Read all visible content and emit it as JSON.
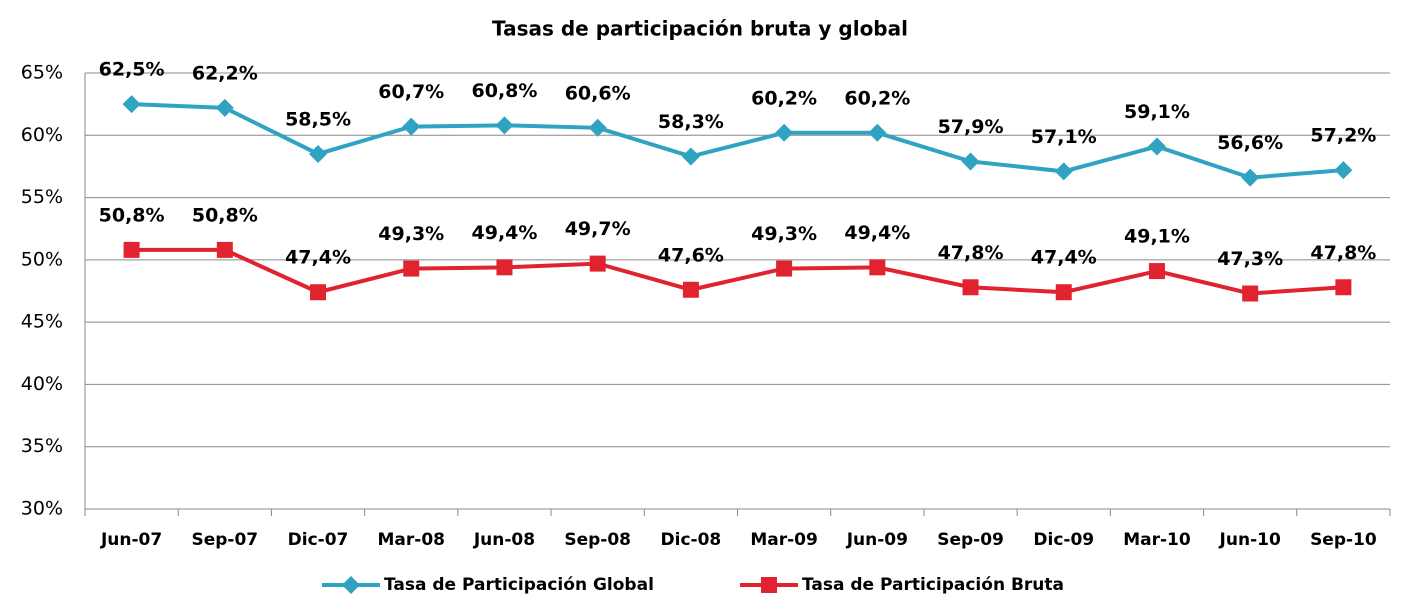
{
  "chart_data": {
    "type": "line",
    "title": "Tasas de participación bruta y global",
    "categories": [
      "Jun-07",
      "Sep-07",
      "Dic-07",
      "Mar-08",
      "Jun-08",
      "Sep-08",
      "Dic-08",
      "Mar-09",
      "Jun-09",
      "Sep-09",
      "Dic-09",
      "Mar-10",
      "Jun-10",
      "Sep-10"
    ],
    "series": [
      {
        "name": "Tasa de Participación Global",
        "color": "#2fa3c1",
        "marker": "diamond",
        "values": [
          62.5,
          62.2,
          58.5,
          60.7,
          60.8,
          60.6,
          58.3,
          60.2,
          60.2,
          57.9,
          57.1,
          59.1,
          56.6,
          57.2
        ],
        "value_labels": [
          "62,5%",
          "62,2%",
          "58,5%",
          "60,7%",
          "60,8%",
          "60,6%",
          "58,3%",
          "60,2%",
          "60,2%",
          "57,9%",
          "57,1%",
          "59,1%",
          "56,6%",
          "57,2%"
        ]
      },
      {
        "name": "Tasa de Participación Bruta",
        "color": "#e0232e",
        "marker": "square",
        "values": [
          50.8,
          50.8,
          47.4,
          49.3,
          49.4,
          49.7,
          47.6,
          49.3,
          49.4,
          47.8,
          47.4,
          49.1,
          47.3,
          47.8
        ],
        "value_labels": [
          "50,8%",
          "50,8%",
          "47,4%",
          "49,3%",
          "49,4%",
          "49,7%",
          "47,6%",
          "49,3%",
          "49,4%",
          "47,8%",
          "47,4%",
          "49,1%",
          "47,3%",
          "47,8%"
        ]
      }
    ],
    "ylim": [
      30,
      65
    ],
    "yticks": [
      {
        "value": 30,
        "label": "30%"
      },
      {
        "value": 35,
        "label": "35%"
      },
      {
        "value": 40,
        "label": "40%"
      },
      {
        "value": 45,
        "label": "45%"
      },
      {
        "value": 50,
        "label": "50%"
      },
      {
        "value": 55,
        "label": "55%"
      },
      {
        "value": 60,
        "label": "60%"
      },
      {
        "value": 65,
        "label": "65%"
      }
    ],
    "grid": true,
    "legend": "bottom"
  }
}
